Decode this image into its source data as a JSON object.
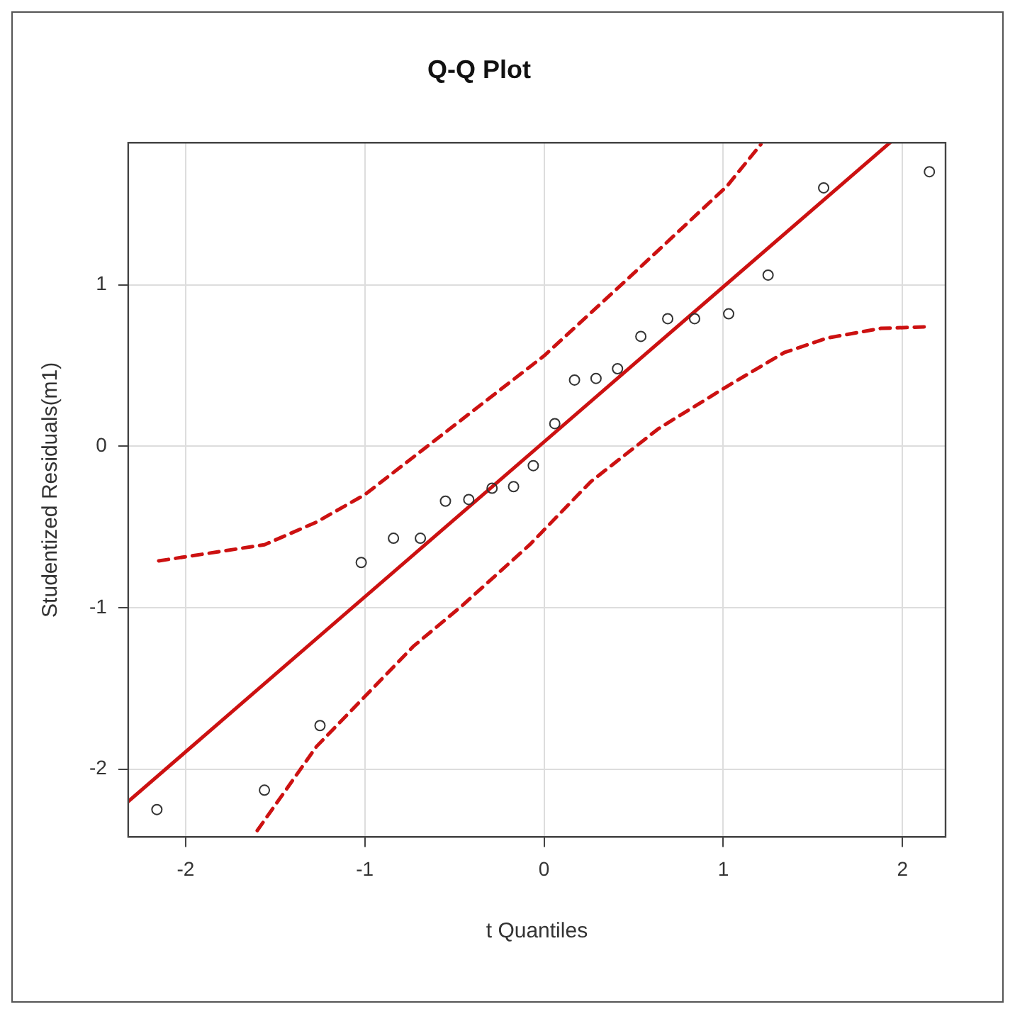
{
  "chart_data": {
    "type": "scatter",
    "title": "Q-Q Plot",
    "xlabel": "t Quantiles",
    "ylabel": "Studentized Residuals(m1)",
    "xlim": [
      -2.32,
      2.24
    ],
    "xticks": [
      -2,
      -1,
      0,
      1,
      2
    ],
    "ylim": [
      -2.42,
      1.88
    ],
    "yticks": [
      -2,
      -1,
      0,
      1
    ],
    "grid": true,
    "marker": "circle",
    "series": [
      {
        "color": "#333333",
        "x": [
          -2.16,
          -1.56,
          -1.25,
          -1.02,
          -0.84,
          -0.69,
          -0.55,
          -0.42,
          -0.29,
          -0.17,
          -0.06,
          0.06,
          0.17,
          0.29,
          0.41,
          0.54,
          0.69,
          0.84,
          1.03,
          1.25,
          1.56,
          2.15
        ],
        "values": [
          -2.25,
          -2.13,
          -1.73,
          -0.72,
          -0.57,
          -0.57,
          -0.34,
          -0.33,
          -0.26,
          -0.25,
          -0.12,
          0.14,
          0.41,
          0.42,
          0.48,
          0.68,
          0.79,
          0.79,
          0.82,
          1.06,
          1.6,
          1.7
        ]
      },
      {
        "type": "line",
        "color": "#cc1111",
        "line_style": "solid",
        "marker": "none",
        "x": [
          -2.32,
          1.93
        ],
        "values": [
          -2.2,
          1.88
        ]
      },
      {
        "type": "line",
        "color": "#cc1111",
        "line_style": "dashed",
        "marker": "none",
        "x": [
          -2.15,
          -1.56,
          -1.27,
          -1.0,
          0.0,
          0.48,
          1.02,
          1.21
        ],
        "values": [
          -0.71,
          -0.61,
          -0.47,
          -0.3,
          0.56,
          1.05,
          1.61,
          1.87
        ]
      },
      {
        "type": "line",
        "color": "#cc1111",
        "line_style": "dashed",
        "marker": "none",
        "x": [
          -1.6,
          -1.27,
          -1.0,
          -0.73,
          -0.46,
          -0.08,
          0.26,
          0.64,
          1.02,
          1.34,
          1.58,
          1.88,
          2.15
        ],
        "values": [
          -2.38,
          -1.86,
          -1.55,
          -1.24,
          -0.99,
          -0.61,
          -0.22,
          0.11,
          0.37,
          0.58,
          0.67,
          0.73,
          0.74
        ]
      }
    ]
  }
}
